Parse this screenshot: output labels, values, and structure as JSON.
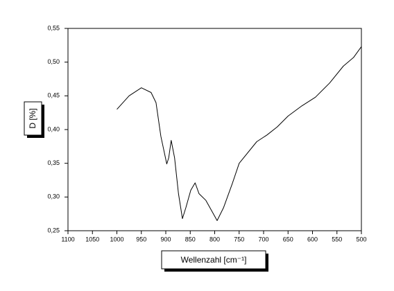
{
  "chart_data": {
    "type": "line",
    "xlabel": "Wellenzahl [cm⁻¹]",
    "ylabel": "D [%]",
    "x": [
      1000,
      975,
      950,
      930,
      920,
      910,
      898,
      894,
      889,
      882,
      874,
      866,
      859,
      849,
      840,
      832,
      818,
      805,
      795,
      782,
      764,
      750,
      714,
      693,
      672,
      650,
      622,
      594,
      565,
      537,
      516,
      500
    ],
    "values": [
      0.43,
      0.45,
      0.462,
      0.455,
      0.44,
      0.39,
      0.349,
      0.358,
      0.384,
      0.358,
      0.305,
      0.268,
      0.284,
      0.31,
      0.321,
      0.305,
      0.295,
      0.278,
      0.265,
      0.284,
      0.32,
      0.35,
      0.382,
      0.392,
      0.404,
      0.42,
      0.435,
      0.448,
      0.469,
      0.494,
      0.507,
      0.523
    ],
    "color": "#000000",
    "xlim": [
      1100,
      500
    ],
    "xticks": [
      1100,
      1050,
      1000,
      950,
      900,
      850,
      800,
      750,
      700,
      650,
      600,
      550,
      500
    ],
    "ylim": [
      0.25,
      0.55
    ],
    "yticks": [
      {
        "value": 0.25,
        "label": "0,25"
      },
      {
        "value": 0.3,
        "label": "0,30"
      },
      {
        "value": 0.35,
        "label": "0,35"
      },
      {
        "value": 0.4,
        "label": "0,40"
      },
      {
        "value": 0.45,
        "label": "0,45"
      },
      {
        "value": 0.5,
        "label": "0,50"
      },
      {
        "value": 0.55,
        "label": "0,55"
      }
    ]
  }
}
